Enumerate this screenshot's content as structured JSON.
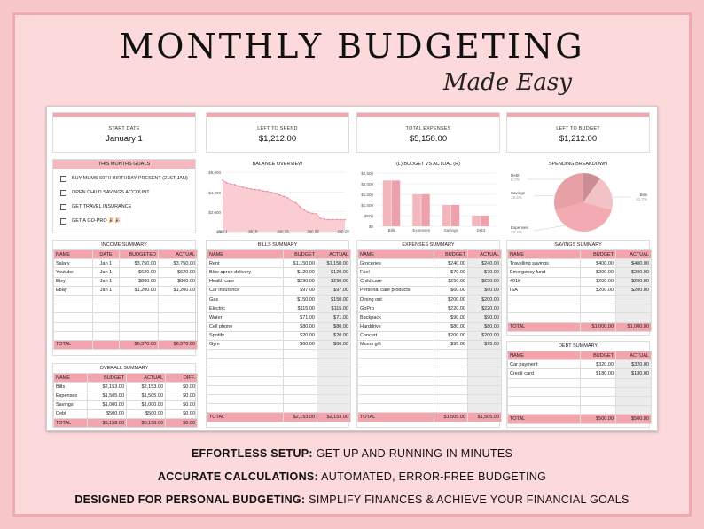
{
  "header": {
    "title": "MONTHLY BUDGETING",
    "subtitle": "Made Easy"
  },
  "cards": [
    {
      "label": "START DATE",
      "value": "January 1"
    },
    {
      "label": "LEFT TO SPEND",
      "value": "$1,212.00"
    },
    {
      "label": "TOTAL EXPENSES",
      "value": "$5,158.00"
    },
    {
      "label": "LEFT TO BUDGET",
      "value": "$1,212.00"
    }
  ],
  "goals": {
    "title": "THIS MONTHS GOALS",
    "items": [
      "BUY MUMS 60TH BIRTHDAY PRESENT (21ST JAN)",
      "OPEN CHILD SAVINGS ACCOUNT",
      "GET TRAVEL INSURANCE",
      "GET A GO-PRO 🎉🎉"
    ]
  },
  "balance_chart": {
    "title": "BALANCE OVERVIEW",
    "yticks": [
      "$6,000",
      "$4,000",
      "$2,000",
      "$0"
    ],
    "xticks": [
      "Jan 1",
      "Jan 8",
      "Jan 15",
      "Jan 22",
      "Jan 29"
    ]
  },
  "budget_chart": {
    "title": "(L) BUDGET VS ACTUAL (R)",
    "yticks": [
      "$2,500",
      "$2,000",
      "$1,500",
      "$1,000",
      "$500",
      "$0"
    ]
  },
  "spending_chart": {
    "title": "SPENDING BREAKDOWN"
  },
  "chart_data": [
    {
      "type": "area",
      "title": "BALANCE OVERVIEW",
      "x": [
        1,
        2,
        3,
        4,
        5,
        6,
        7,
        8,
        9,
        10,
        11,
        12,
        13,
        14,
        15,
        16,
        17,
        18,
        19,
        20,
        21,
        22,
        23,
        24,
        25,
        26,
        27,
        28,
        29,
        30,
        31
      ],
      "x_labels": [
        "Jan 1",
        "Jan 8",
        "Jan 15",
        "Jan 22",
        "Jan 29"
      ],
      "values": [
        5200,
        4950,
        4800,
        4750,
        4600,
        4500,
        4400,
        4300,
        4250,
        4200,
        4100,
        4050,
        3950,
        3850,
        3700,
        3550,
        3400,
        3100,
        2900,
        2500,
        2200,
        1950,
        1850,
        1800,
        1350,
        1250,
        1212,
        1212,
        1212,
        1212,
        1212
      ],
      "ylim": [
        0,
        6000
      ]
    },
    {
      "type": "bar",
      "title": "(L) BUDGET VS ACTUAL (R)",
      "categories": [
        "Bills",
        "Expenses",
        "Savings",
        "Debt"
      ],
      "series": [
        {
          "values": [
            2153,
            1505,
            1000,
            500
          ]
        },
        {
          "values": [
            2153,
            1505,
            1000,
            500
          ]
        }
      ],
      "ylim": [
        0,
        2500
      ]
    },
    {
      "type": "pie",
      "title": "SPENDING BREAKDOWN",
      "slices": [
        {
          "label": "Debt",
          "pct": "9.7%",
          "value": 9.7,
          "color": "#c98e93"
        },
        {
          "label": "Savings",
          "pct": "19.4%",
          "value": 19.4,
          "color": "#f2c2c6"
        },
        {
          "label": "Bills",
          "pct": "41.7%",
          "value": 41.7,
          "color": "#f4aab3"
        },
        {
          "label": "Expenses",
          "pct": "29.2%",
          "value": 29.2,
          "color": "#e6a0a6"
        }
      ]
    }
  ],
  "income": {
    "title": "INCOME SUMMARY",
    "headers": [
      "NAME",
      "DATE",
      "BUDGETED",
      "ACTUAL"
    ],
    "rows": [
      [
        "Salary",
        "Jan 1",
        "$3,750.00",
        "$3,750.00"
      ],
      [
        "Youtube",
        "Jan 1",
        "$620.00",
        "$620.00"
      ],
      [
        "Etsy",
        "Jan 1",
        "$800.00",
        "$800.00"
      ],
      [
        "Ebay",
        "Jan 1",
        "$1,200.00",
        "$1,200.00"
      ]
    ],
    "total": [
      "TOTAL",
      "",
      "$6,370.00",
      "$6,370.00"
    ]
  },
  "overall": {
    "title": "OVERALL SUMMARY",
    "headers": [
      "NAME",
      "BUDGET",
      "ACTUAL",
      "DIFF."
    ],
    "rows": [
      [
        "Bills",
        "$2,153.00",
        "$2,153.00",
        "$0.00"
      ],
      [
        "Expenses",
        "$1,505.00",
        "$1,505.00",
        "$0.00"
      ],
      [
        "Savings",
        "$1,000.00",
        "$1,000.00",
        "$0.00"
      ],
      [
        "Debt",
        "$500.00",
        "$500.00",
        "$0.00"
      ]
    ],
    "total": [
      "TOTAL",
      "$5,158.00",
      "$5,158.00",
      "$0.00"
    ]
  },
  "bills": {
    "title": "BILLS SUMMARY",
    "headers": [
      "NAME",
      "BUDGET",
      "ACTUAL"
    ],
    "rows": [
      [
        "Rent",
        "$1,150.00",
        "$1,150.00"
      ],
      [
        "Blue apron delivery",
        "$120.00",
        "$120.00"
      ],
      [
        "Health care",
        "$290.00",
        "$290.00"
      ],
      [
        "Car insurance",
        "$97.00",
        "$97.00"
      ],
      [
        "Gas",
        "$150.00",
        "$150.00"
      ],
      [
        "Electric",
        "$115.00",
        "$115.00"
      ],
      [
        "Water",
        "$71.00",
        "$71.00"
      ],
      [
        "Cell phone",
        "$80.00",
        "$80.00"
      ],
      [
        "Spotify",
        "$20.00",
        "$20.00"
      ],
      [
        "Gym",
        "$60.00",
        "$60.00"
      ]
    ],
    "total": [
      "TOTAL",
      "$2,153.00",
      "$2,153.00"
    ]
  },
  "expenses": {
    "title": "EXPENSES SUMMARY",
    "headers": [
      "NAME",
      "BUDGET",
      "ACTUAL"
    ],
    "rows": [
      [
        "Groceries",
        "$240.00",
        "$240.00"
      ],
      [
        "Fuel",
        "$70.00",
        "$70.00"
      ],
      [
        "Child care",
        "$250.00",
        "$250.00"
      ],
      [
        "Personal care products",
        "$60.00",
        "$60.00"
      ],
      [
        "Dining out",
        "$200.00",
        "$200.00"
      ],
      [
        "GoPro",
        "$220.00",
        "$220.00"
      ],
      [
        "Backpack",
        "$90.00",
        "$90.00"
      ],
      [
        "Harddrive",
        "$80.00",
        "$80.00"
      ],
      [
        "Concert",
        "$200.00",
        "$200.00"
      ],
      [
        "Mums gift",
        "$95.00",
        "$95.00"
      ]
    ],
    "total": [
      "TOTAL",
      "$1,505.00",
      "$1,505.00"
    ]
  },
  "savings": {
    "title": "SAVINGS SUMMARY",
    "headers": [
      "NAME",
      "BUDGET",
      "ACTUAL"
    ],
    "rows": [
      [
        "Travelling savings",
        "$400.00",
        "$400.00"
      ],
      [
        "Emergency fund",
        "$200.00",
        "$200.00"
      ],
      [
        "401k",
        "$200.00",
        "$200.00"
      ],
      [
        "ISA",
        "$200.00",
        "$200.00"
      ]
    ],
    "total": [
      "TOTAL",
      "$1,000.00",
      "$1,000.00"
    ]
  },
  "debt": {
    "title": "DEBT SUMMARY",
    "headers": [
      "NAME",
      "BUDGET",
      "ACTUAL"
    ],
    "rows": [
      [
        "Car payment",
        "$320.00",
        "$320.00"
      ],
      [
        "Credit card",
        "$180.00",
        "$180.00"
      ]
    ],
    "total": [
      "TOTAL",
      "$500.00",
      "$500.00"
    ]
  },
  "features": [
    {
      "bold": "EFFORTLESS SETUP:",
      "text": " GET UP AND RUNNING IN MINUTES"
    },
    {
      "bold": "ACCURATE CALCULATIONS:",
      "text": " AUTOMATED, ERROR-FREE BUDGETING"
    },
    {
      "bold": "DESIGNED FOR PERSONAL BUDGETING:",
      "text": " SIMPLIFY FINANCES & ACHIEVE YOUR FINANCIAL GOALS"
    }
  ]
}
